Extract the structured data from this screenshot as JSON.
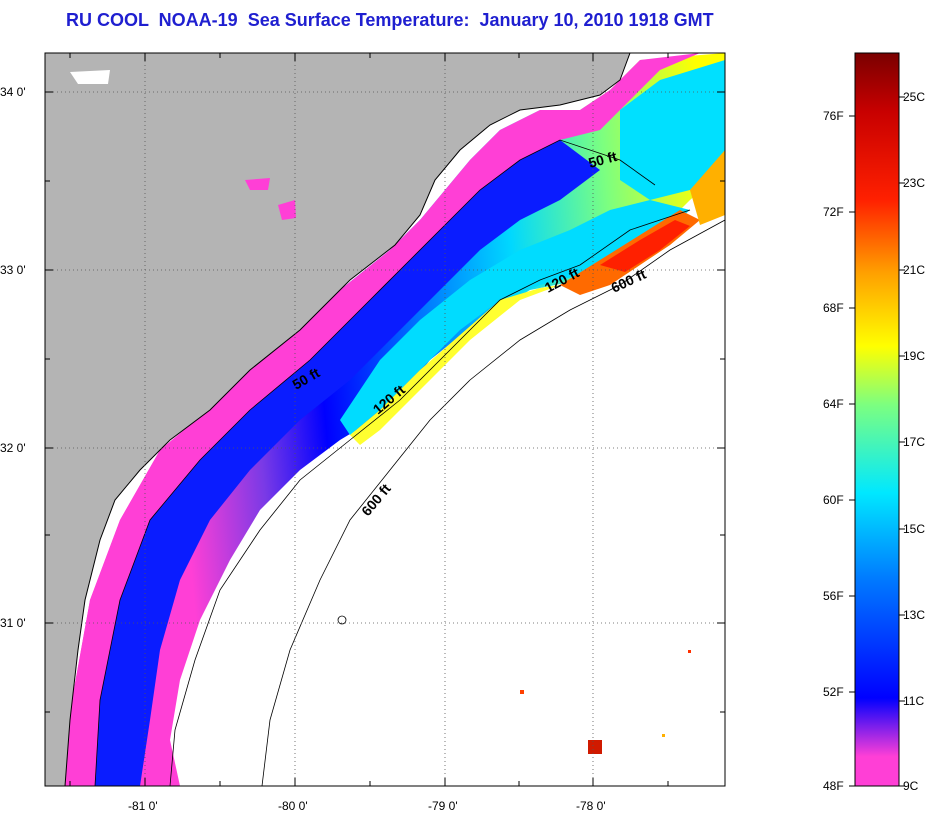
{
  "title": "RU COOL  NOAA-19  Sea Surface Temperature:  January 10, 2010 1918 GMT",
  "lat_labels": [
    "34 0'",
    "33 0'",
    "32 0'",
    "31 0'"
  ],
  "lon_labels": [
    "-81 0'",
    "-80 0'",
    "-79 0'",
    "-78 0'"
  ],
  "contours": {
    "c50_upper": "50 ft",
    "c50_lower": "50 ft",
    "c120_upper": "120 ft",
    "c120_lower": "120 ft",
    "c600_upper": "600 ft",
    "c600_lower": "600 ft"
  },
  "colorbar": {
    "fahrenheit": [
      "76F",
      "72F",
      "68F",
      "64F",
      "60F",
      "56F",
      "52F",
      "48F"
    ],
    "celsius": [
      "25C",
      "23C",
      "21C",
      "19C",
      "17C",
      "15C",
      "13C",
      "11C",
      "9C"
    ],
    "stops": [
      "#ff3fd6",
      "#b040e0",
      "#0000ff",
      "#0070ff",
      "#00d8ff",
      "#7cff80",
      "#ffff00",
      "#ffa000",
      "#ff2000",
      "#c00000",
      "#7a0000"
    ]
  },
  "colors": {
    "land": "#b4b4b4",
    "ocean_no_data": "#ffffff",
    "title": "#1f1fd0"
  }
}
